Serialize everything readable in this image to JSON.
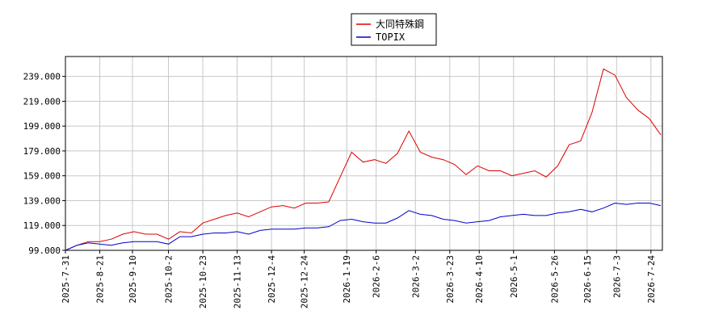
{
  "chart_data": {
    "type": "line",
    "x": [
      "2025-7-31",
      "2025-8-7",
      "2025-8-14",
      "2025-8-21",
      "2025-8-28",
      "2025-9-4",
      "2025-9-11",
      "2025-9-18",
      "2025-9-25",
      "2025-10-2",
      "2025-10-9",
      "2025-10-16",
      "2025-10-23",
      "2025-10-30",
      "2025-11-6",
      "2025-11-13",
      "2025-11-20",
      "2025-11-27",
      "2025-12-4",
      "2025-12-11",
      "2025-12-18",
      "2025-12-25",
      "2026-1-1",
      "2026-1-8",
      "2026-1-15",
      "2026-1-22",
      "2026-1-29",
      "2026-2-5",
      "2026-2-12",
      "2026-2-19",
      "2026-2-26",
      "2026-3-5",
      "2026-3-12",
      "2026-3-19",
      "2026-3-26",
      "2026-4-2",
      "2026-4-9",
      "2026-4-16",
      "2026-4-23",
      "2026-4-30",
      "2026-5-7",
      "2026-5-14",
      "2026-5-21",
      "2026-5-28",
      "2026-6-4",
      "2026-6-11",
      "2026-6-18",
      "2026-6-25",
      "2026-7-2",
      "2026-7-9",
      "2026-7-16",
      "2026-7-23",
      "2026-7-30"
    ],
    "series": [
      {
        "name": "大同特殊鋼",
        "color": "#dd0000",
        "values": [
          99,
          103,
          106,
          106,
          108,
          112,
          114,
          112,
          112,
          108,
          114,
          113,
          121,
          124,
          127,
          129,
          126,
          130,
          134,
          135,
          133,
          137,
          137,
          138,
          158,
          178,
          170,
          172,
          169,
          177,
          195,
          178,
          174,
          172,
          168,
          160,
          167,
          163,
          163,
          159,
          161,
          163,
          158,
          167,
          184,
          187,
          210,
          245,
          240,
          222,
          212,
          205,
          192
        ]
      },
      {
        "name": "TOPIX",
        "color": "#0000cc",
        "values": [
          99,
          103,
          105,
          104,
          103,
          105,
          106,
          106,
          106,
          104,
          110,
          110,
          112,
          113,
          113,
          114,
          112,
          115,
          116,
          116,
          116,
          117,
          117,
          118,
          123,
          124,
          122,
          121,
          121,
          125,
          131,
          128,
          127,
          124,
          123,
          121,
          122,
          123,
          126,
          127,
          128,
          127,
          127,
          129,
          130,
          132,
          130,
          133,
          137,
          136,
          137,
          137,
          135
        ]
      }
    ],
    "xlim": [
      "2025-7-31",
      "2026-7-31"
    ],
    "xticks": [
      "2025-7-31",
      "2025-8-21",
      "2025-9-10",
      "2025-10-2",
      "2025-10-23",
      "2025-11-13",
      "2025-12-4",
      "2025-12-24",
      "2026-1-19",
      "2026-2-6",
      "2026-3-2",
      "2026-3-23",
      "2026-4-10",
      "2026-5-1",
      "2026-5-26",
      "2026-6-15",
      "2026-7-3",
      "2026-7-24"
    ],
    "ylim": [
      99,
      255
    ],
    "yticks": [
      {
        "value": 99,
        "label": "99.000"
      },
      {
        "value": 119,
        "label": "119.000"
      },
      {
        "value": 139,
        "label": "139.000"
      },
      {
        "value": 159,
        "label": "159.000"
      },
      {
        "value": 179,
        "label": "179.000"
      },
      {
        "value": 199,
        "label": "199.000"
      },
      {
        "value": 219,
        "label": "219.000"
      },
      {
        "value": 239,
        "label": "239.000"
      }
    ],
    "grid": true
  }
}
